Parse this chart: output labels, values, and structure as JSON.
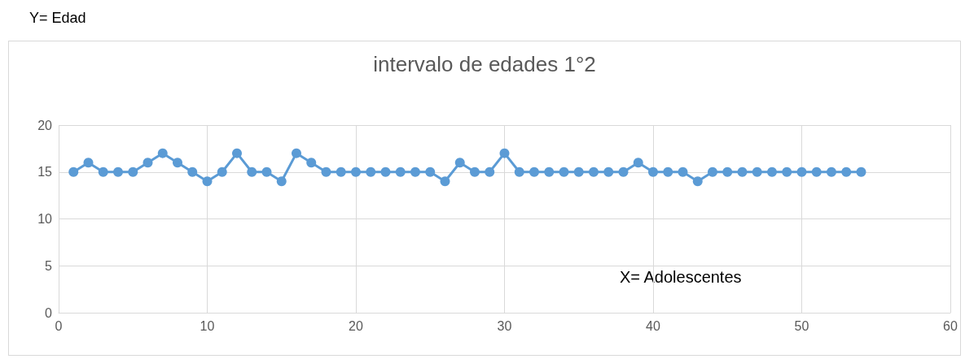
{
  "chart_data": {
    "type": "line",
    "title": "intervalo de edades 1°2",
    "annotations": [
      "Y= Edad",
      "X= Adolescentes"
    ],
    "x": [
      1,
      2,
      3,
      4,
      5,
      6,
      7,
      8,
      9,
      10,
      11,
      12,
      13,
      14,
      15,
      16,
      17,
      18,
      19,
      20,
      21,
      22,
      23,
      24,
      25,
      26,
      27,
      28,
      29,
      30,
      31,
      32,
      33,
      34,
      35,
      36,
      37,
      38,
      39,
      40,
      41,
      42,
      43,
      44,
      45,
      46,
      47,
      48,
      49,
      50,
      51,
      52,
      53,
      54
    ],
    "values": [
      15,
      16,
      15,
      15,
      15,
      16,
      17,
      16,
      15,
      14,
      15,
      17,
      15,
      15,
      14,
      17,
      16,
      15,
      15,
      15,
      15,
      15,
      15,
      15,
      15,
      14,
      16,
      15,
      15,
      17,
      15,
      15,
      15,
      15,
      15,
      15,
      15,
      15,
      16,
      15,
      15,
      15,
      14,
      15,
      15,
      15,
      15,
      15,
      15,
      15,
      15,
      15,
      15,
      15
    ],
    "color": "#5b9bd5",
    "xlim": [
      0,
      60
    ],
    "xticks": [
      0,
      10,
      20,
      30,
      40,
      50,
      60
    ],
    "ylim": [
      0,
      20
    ],
    "yticks": [
      0,
      5,
      10,
      15,
      20
    ],
    "grid": true,
    "marker": "circle",
    "line_style": "solid"
  }
}
